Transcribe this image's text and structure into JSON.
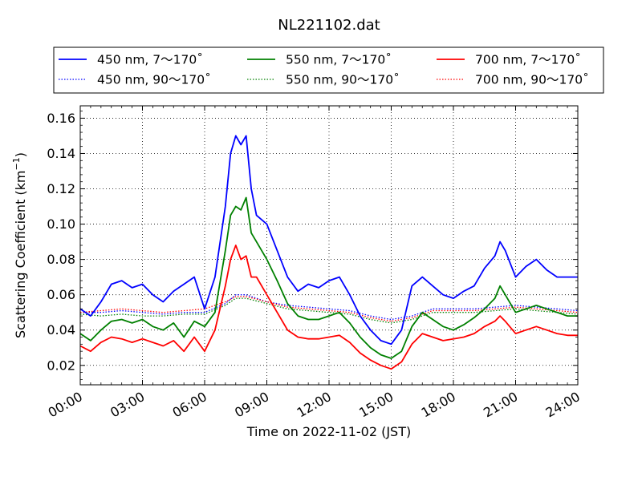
{
  "chart_data": {
    "type": "line",
    "title": "NL221102.dat",
    "xlabel": "Time on 2022-11-02 (JST)",
    "ylabel_main": "Scattering Coefficient (km",
    "ylabel_sup": "−1",
    "ylabel_close": ")",
    "xlim": [
      0,
      24
    ],
    "ylim": [
      0.009,
      0.167
    ],
    "x_ticks": [
      0,
      3,
      6,
      9,
      12,
      15,
      18,
      21,
      24
    ],
    "x_tick_labels": [
      "00:00",
      "03:00",
      "06:00",
      "09:00",
      "12:00",
      "15:00",
      "18:00",
      "21:00",
      "24:00"
    ],
    "y_ticks": [
      0.02,
      0.04,
      0.06,
      0.08,
      0.1,
      0.12,
      0.14,
      0.16
    ],
    "y_tick_labels": [
      "0.02",
      "0.04",
      "0.06",
      "0.08",
      "0.10",
      "0.12",
      "0.14",
      "0.16"
    ],
    "grid": true,
    "legend_position": "above plot, 3 columns",
    "series": [
      {
        "name": "450 nm, 7～170˚",
        "color": "#0000ff",
        "style": "solid",
        "x": [
          0,
          0.5,
          1,
          1.5,
          2,
          2.5,
          3,
          3.5,
          4,
          4.5,
          5,
          5.5,
          6,
          6.5,
          7,
          7.25,
          7.5,
          7.75,
          8,
          8.25,
          8.5,
          9,
          9.5,
          10,
          10.5,
          11,
          11.5,
          12,
          12.5,
          13,
          13.5,
          14,
          14.5,
          15,
          15.5,
          16,
          16.5,
          17,
          17.5,
          18,
          18.5,
          19,
          19.5,
          20,
          20.25,
          20.5,
          21,
          21.5,
          22,
          22.5,
          23,
          23.5,
          24
        ],
        "y": [
          0.052,
          0.048,
          0.056,
          0.066,
          0.068,
          0.064,
          0.066,
          0.06,
          0.056,
          0.062,
          0.066,
          0.07,
          0.052,
          0.07,
          0.11,
          0.14,
          0.15,
          0.145,
          0.15,
          0.12,
          0.105,
          0.1,
          0.085,
          0.07,
          0.062,
          0.066,
          0.064,
          0.068,
          0.07,
          0.06,
          0.048,
          0.04,
          0.034,
          0.032,
          0.04,
          0.065,
          0.07,
          0.065,
          0.06,
          0.058,
          0.062,
          0.065,
          0.075,
          0.082,
          0.09,
          0.085,
          0.07,
          0.076,
          0.08,
          0.074,
          0.07,
          0.07,
          0.07
        ]
      },
      {
        "name": "450 nm, 90～170˚",
        "color": "#0000ff",
        "style": "dotted",
        "x": [
          0,
          1,
          2,
          3,
          4,
          5,
          6,
          7,
          7.5,
          8,
          9,
          10,
          11,
          12,
          13,
          14,
          15,
          16,
          17,
          18,
          19,
          20,
          21,
          22,
          23,
          24
        ],
        "y": [
          0.05,
          0.05,
          0.051,
          0.05,
          0.049,
          0.05,
          0.05,
          0.055,
          0.06,
          0.06,
          0.056,
          0.054,
          0.053,
          0.052,
          0.051,
          0.048,
          0.046,
          0.048,
          0.052,
          0.052,
          0.052,
          0.053,
          0.054,
          0.053,
          0.052,
          0.051
        ]
      },
      {
        "name": "550 nm, 7～170˚",
        "color": "#008000",
        "style": "solid",
        "x": [
          0,
          0.5,
          1,
          1.5,
          2,
          2.5,
          3,
          3.5,
          4,
          4.5,
          5,
          5.5,
          6,
          6.5,
          7,
          7.25,
          7.5,
          7.75,
          8,
          8.25,
          8.5,
          9,
          9.5,
          10,
          10.5,
          11,
          11.5,
          12,
          12.5,
          13,
          13.5,
          14,
          14.5,
          15,
          15.5,
          16,
          16.5,
          17,
          17.5,
          18,
          18.5,
          19,
          19.5,
          20,
          20.25,
          20.5,
          21,
          21.5,
          22,
          22.5,
          23,
          23.5,
          24
        ],
        "y": [
          0.038,
          0.034,
          0.04,
          0.045,
          0.046,
          0.044,
          0.046,
          0.042,
          0.04,
          0.044,
          0.036,
          0.045,
          0.042,
          0.05,
          0.085,
          0.105,
          0.11,
          0.108,
          0.115,
          0.095,
          0.09,
          0.08,
          0.068,
          0.055,
          0.048,
          0.046,
          0.046,
          0.048,
          0.05,
          0.044,
          0.036,
          0.03,
          0.026,
          0.024,
          0.028,
          0.042,
          0.05,
          0.046,
          0.042,
          0.04,
          0.043,
          0.047,
          0.052,
          0.058,
          0.065,
          0.06,
          0.05,
          0.052,
          0.054,
          0.052,
          0.05,
          0.048,
          0.048
        ]
      },
      {
        "name": "550 nm, 90～170˚",
        "color": "#008000",
        "style": "dotted",
        "x": [
          0,
          1,
          2,
          3,
          4,
          5,
          6,
          7,
          7.5,
          8,
          9,
          10,
          11,
          12,
          13,
          14,
          15,
          16,
          17,
          18,
          19,
          20,
          21,
          22,
          23,
          24
        ],
        "y": [
          0.049,
          0.048,
          0.049,
          0.048,
          0.048,
          0.049,
          0.049,
          0.054,
          0.058,
          0.058,
          0.055,
          0.052,
          0.051,
          0.05,
          0.049,
          0.046,
          0.044,
          0.046,
          0.05,
          0.05,
          0.05,
          0.051,
          0.052,
          0.051,
          0.05,
          0.049
        ]
      },
      {
        "name": "700 nm, 7～170˚",
        "color": "#ff0000",
        "style": "solid",
        "x": [
          0,
          0.5,
          1,
          1.5,
          2,
          2.5,
          3,
          3.5,
          4,
          4.5,
          5,
          5.5,
          6,
          6.5,
          7,
          7.25,
          7.5,
          7.75,
          8,
          8.25,
          8.5,
          9,
          9.5,
          10,
          10.5,
          11,
          11.5,
          12,
          12.5,
          13,
          13.5,
          14,
          14.5,
          15,
          15.5,
          16,
          16.5,
          17,
          17.5,
          18,
          18.5,
          19,
          19.5,
          20,
          20.25,
          20.5,
          21,
          21.5,
          22,
          22.5,
          23,
          23.5,
          24
        ],
        "y": [
          0.031,
          0.028,
          0.033,
          0.036,
          0.035,
          0.033,
          0.035,
          0.033,
          0.031,
          0.034,
          0.028,
          0.036,
          0.028,
          0.04,
          0.065,
          0.08,
          0.088,
          0.08,
          0.082,
          0.07,
          0.07,
          0.06,
          0.05,
          0.04,
          0.036,
          0.035,
          0.035,
          0.036,
          0.037,
          0.033,
          0.027,
          0.023,
          0.02,
          0.018,
          0.022,
          0.032,
          0.038,
          0.036,
          0.034,
          0.035,
          0.036,
          0.038,
          0.042,
          0.045,
          0.048,
          0.045,
          0.038,
          0.04,
          0.042,
          0.04,
          0.038,
          0.037,
          0.037
        ]
      },
      {
        "name": "700 nm, 90～170˚",
        "color": "#ff0000",
        "style": "dotted",
        "x": [
          0,
          1,
          2,
          3,
          4,
          5,
          6,
          7,
          7.5,
          8,
          9,
          10,
          11,
          12,
          13,
          14,
          15,
          16,
          17,
          18,
          19,
          20,
          21,
          22,
          23,
          24
        ],
        "y": [
          0.05,
          0.051,
          0.052,
          0.051,
          0.05,
          0.051,
          0.052,
          0.056,
          0.059,
          0.059,
          0.056,
          0.053,
          0.052,
          0.051,
          0.05,
          0.047,
          0.045,
          0.047,
          0.051,
          0.051,
          0.051,
          0.052,
          0.053,
          0.052,
          0.051,
          0.05
        ]
      }
    ]
  }
}
